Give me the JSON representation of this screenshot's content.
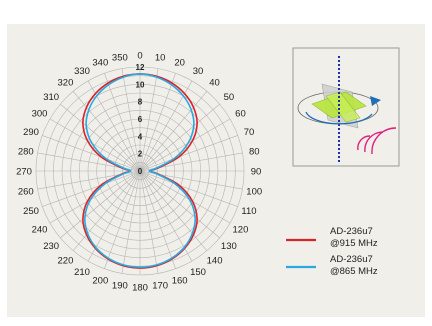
{
  "chart_data": {
    "type": "polar-line",
    "title": "",
    "angle_ticks": [
      "0",
      "10",
      "20",
      "30",
      "40",
      "50",
      "60",
      "70",
      "80",
      "90",
      "100",
      "110",
      "120",
      "130",
      "140",
      "150",
      "160",
      "170",
      "180",
      "190",
      "200",
      "210",
      "220",
      "230",
      "240",
      "250",
      "260",
      "270",
      "280",
      "290",
      "300",
      "310",
      "320",
      "330",
      "340",
      "350"
    ],
    "radial_ticks": [
      "0",
      "2",
      "4",
      "6",
      "8",
      "10",
      "12"
    ],
    "radial_range": [
      0,
      12
    ],
    "grid": true,
    "legend_position": "bottom-right",
    "angles": [
      0,
      10,
      20,
      30,
      40,
      50,
      60,
      70,
      80,
      90,
      100,
      110,
      120,
      130,
      140,
      150,
      160,
      170,
      180,
      190,
      200,
      210,
      220,
      230,
      240,
      250,
      260,
      270,
      280,
      290,
      300,
      310,
      320,
      330,
      340,
      350
    ],
    "series": [
      {
        "name": "AD-236u7\n@915 MHz",
        "color": "#d8232a",
        "values": [
          11.2,
          11.1,
          10.8,
          10.3,
          9.6,
          8.6,
          7.0,
          4.8,
          2.2,
          1.2,
          2.2,
          4.8,
          7.0,
          8.6,
          9.6,
          10.3,
          10.8,
          11.1,
          11.2,
          11.1,
          10.8,
          10.3,
          9.6,
          8.6,
          7.0,
          4.8,
          2.2,
          1.2,
          2.2,
          4.8,
          7.0,
          8.6,
          9.6,
          10.3,
          10.8,
          11.1
        ]
      },
      {
        "name": "AD-236u7\n@865 MHz",
        "color": "#2aa9e0",
        "values": [
          11.2,
          11.0,
          10.6,
          10.0,
          9.2,
          8.1,
          6.4,
          4.2,
          1.9,
          1.1,
          2.0,
          4.3,
          6.6,
          8.3,
          9.4,
          10.2,
          10.7,
          11.0,
          11.1,
          11.0,
          10.7,
          10.2,
          9.4,
          8.3,
          6.6,
          4.3,
          2.0,
          1.1,
          1.9,
          4.2,
          6.4,
          8.1,
          9.2,
          10.0,
          10.6,
          11.0
        ]
      }
    ]
  },
  "legend": {
    "items": [
      {
        "line1": "AD-236u7",
        "line2": "@915 MHz",
        "color": "#d8232a"
      },
      {
        "line1": "AD-236u7",
        "line2": "@865 MHz",
        "color": "#2aa9e0"
      }
    ]
  },
  "inset": {
    "icon": "antenna-orientation-diagram",
    "colors": {
      "axis": "#1b2fa8",
      "antenna": "#b8e63c",
      "waves": "#e0207f",
      "arrow": "#1f6fb8"
    }
  }
}
